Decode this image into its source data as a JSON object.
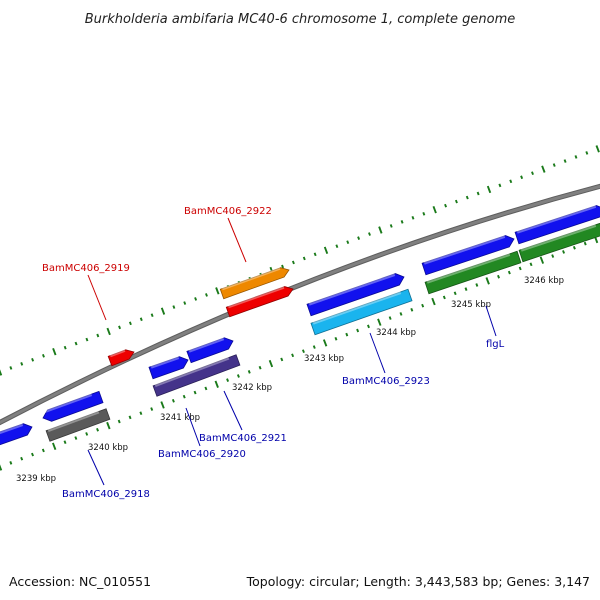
{
  "title": "Burkholderia ambifaria MC40-6 chromosome 1, complete genome",
  "footer": {
    "accession": "Accession: NC_010551",
    "summary": "Topology: circular; Length: 3,443,583 bp; Genes: 3,147"
  },
  "colors": {
    "background": "#ffffff",
    "backbone": "#808080",
    "tick": "#1a7a1a",
    "label_red": "#cc0000",
    "label_blue": "#0000aa"
  },
  "scale": {
    "unit": "kbp",
    "tick_labels": [
      "3239 kbp",
      "3240 kbp",
      "3241 kbp",
      "3242 kbp",
      "3243 kbp",
      "3244 kbp",
      "3245 kbp",
      "3246 kbp"
    ]
  },
  "genes": [
    {
      "label": "BamMC406_2918",
      "label_color": "blue",
      "fill": "#5a5a5a"
    },
    {
      "label": "BamMC406_2919",
      "label_color": "red",
      "fill": "#ee0000"
    },
    {
      "label": "BamMC406_2920",
      "label_color": "blue",
      "fill": "#1111ee"
    },
    {
      "label": "BamMC406_2921",
      "label_color": "blue",
      "fill": "#44338a"
    },
    {
      "label": "BamMC406_2922",
      "label_color": "red",
      "fill": "#ee8800"
    },
    {
      "label": "BamMC406_2923",
      "label_color": "blue",
      "fill": "#1ab4ee"
    },
    {
      "label": "flgL",
      "label_color": "blue",
      "fill": "#228822"
    }
  ]
}
